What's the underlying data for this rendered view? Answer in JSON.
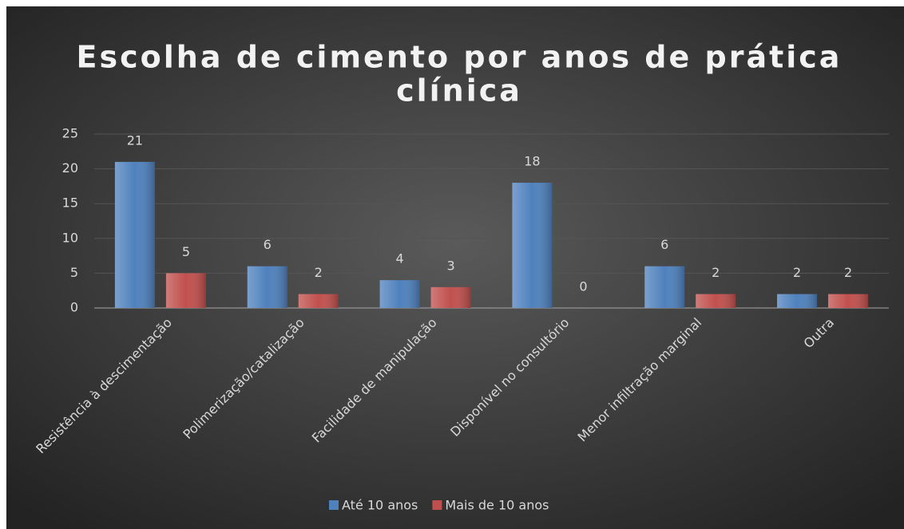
{
  "chart_data": {
    "type": "bar",
    "title": [
      "Escolha de cimento por anos de prática",
      "clínica"
    ],
    "categories": [
      "Resistência à descimentação",
      "Polimerização/catalização",
      "Facilidade de manipulação",
      "Disponível no consultório",
      "Menor infiltração marginal",
      "Outra"
    ],
    "series": [
      {
        "name": "Até 10 anos",
        "color": "#4f81bd",
        "values": [
          21,
          6,
          4,
          18,
          6,
          2
        ]
      },
      {
        "name": "Mais de 10 anos",
        "color": "#c0504d",
        "values": [
          5,
          2,
          3,
          0,
          2,
          2
        ]
      }
    ],
    "ylim": [
      0,
      25
    ],
    "yticks": [
      0,
      5,
      10,
      15,
      20,
      25
    ],
    "grid": true,
    "legend": "bottom"
  }
}
